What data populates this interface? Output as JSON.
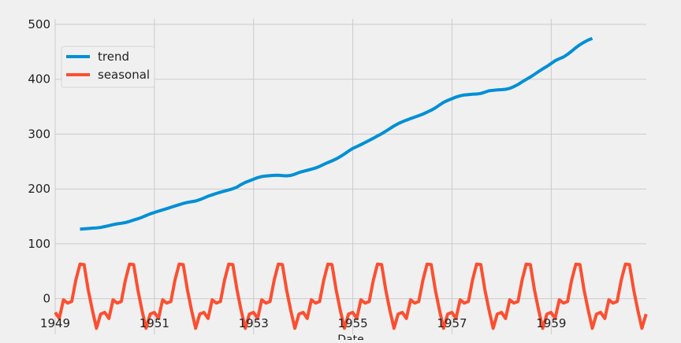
{
  "chart_data": {
    "type": "line",
    "title": "",
    "xlabel": "Date",
    "ylabel": "",
    "xlim": [
      1949.0,
      1960.917
    ],
    "ylim": [
      -65,
      510
    ],
    "x_ticks": [
      1949,
      1951,
      1953,
      1955,
      1957,
      1959
    ],
    "x_tick_labels": [
      "1949",
      "1951",
      "1953",
      "1955",
      "1957",
      "1959"
    ],
    "y_ticks": [
      0,
      100,
      200,
      300,
      400,
      500
    ],
    "y_tick_labels": [
      "0",
      "100",
      "200",
      "300",
      "400",
      "500"
    ],
    "grid": true,
    "legend_position": "top-left",
    "series": [
      {
        "name": "trend",
        "color": "#008fd5",
        "start": 1949.5,
        "step": 0.0833,
        "values": [
          126.8,
          127.3,
          127.9,
          128.6,
          129.0,
          129.8,
          131.4,
          133.1,
          134.9,
          136.4,
          137.4,
          138.8,
          140.9,
          143.3,
          145.7,
          148.4,
          151.5,
          154.7,
          157.1,
          159.5,
          161.8,
          164.2,
          166.6,
          169.0,
          171.3,
          173.6,
          175.5,
          176.8,
          178.0,
          180.5,
          183.5,
          186.8,
          189.3,
          191.8,
          194.1,
          196.3,
          198.3,
          200.4,
          203.5,
          208.0,
          211.9,
          214.7,
          217.7,
          220.7,
          222.6,
          223.6,
          224.4,
          224.8,
          225.0,
          224.3,
          223.9,
          224.6,
          227.0,
          230.0,
          232.1,
          234.0,
          236.0,
          238.2,
          241.2,
          244.8,
          248.2,
          251.3,
          254.8,
          258.9,
          263.8,
          269.0,
          273.8,
          277.3,
          280.8,
          284.7,
          288.4,
          292.5,
          296.6,
          300.7,
          305.3,
          310.1,
          314.8,
          319.0,
          322.4,
          325.5,
          328.3,
          330.9,
          333.6,
          336.5,
          340.0,
          343.5,
          347.8,
          353.0,
          357.8,
          361.4,
          364.5,
          367.4,
          369.8,
          371.3,
          372.1,
          372.6,
          373.1,
          374.0,
          376.5,
          379.0,
          379.8,
          380.5,
          381.0,
          381.6,
          383.4,
          386.5,
          390.4,
          395.1,
          399.8,
          404.0,
          408.9,
          414.1,
          419.0,
          423.4,
          428.5,
          433.9,
          437.3,
          440.5,
          445.3,
          451.2,
          457.5,
          463.0,
          467.5,
          471.4,
          474.5
        ]
      },
      {
        "name": "seasonal",
        "color": "#fc4f30",
        "start": 1949.0,
        "step": 0.0833,
        "pattern": [
          -25,
          -36,
          -2,
          -8,
          -5,
          34,
          63,
          62,
          16,
          -21,
          -54,
          -28
        ]
      }
    ]
  }
}
